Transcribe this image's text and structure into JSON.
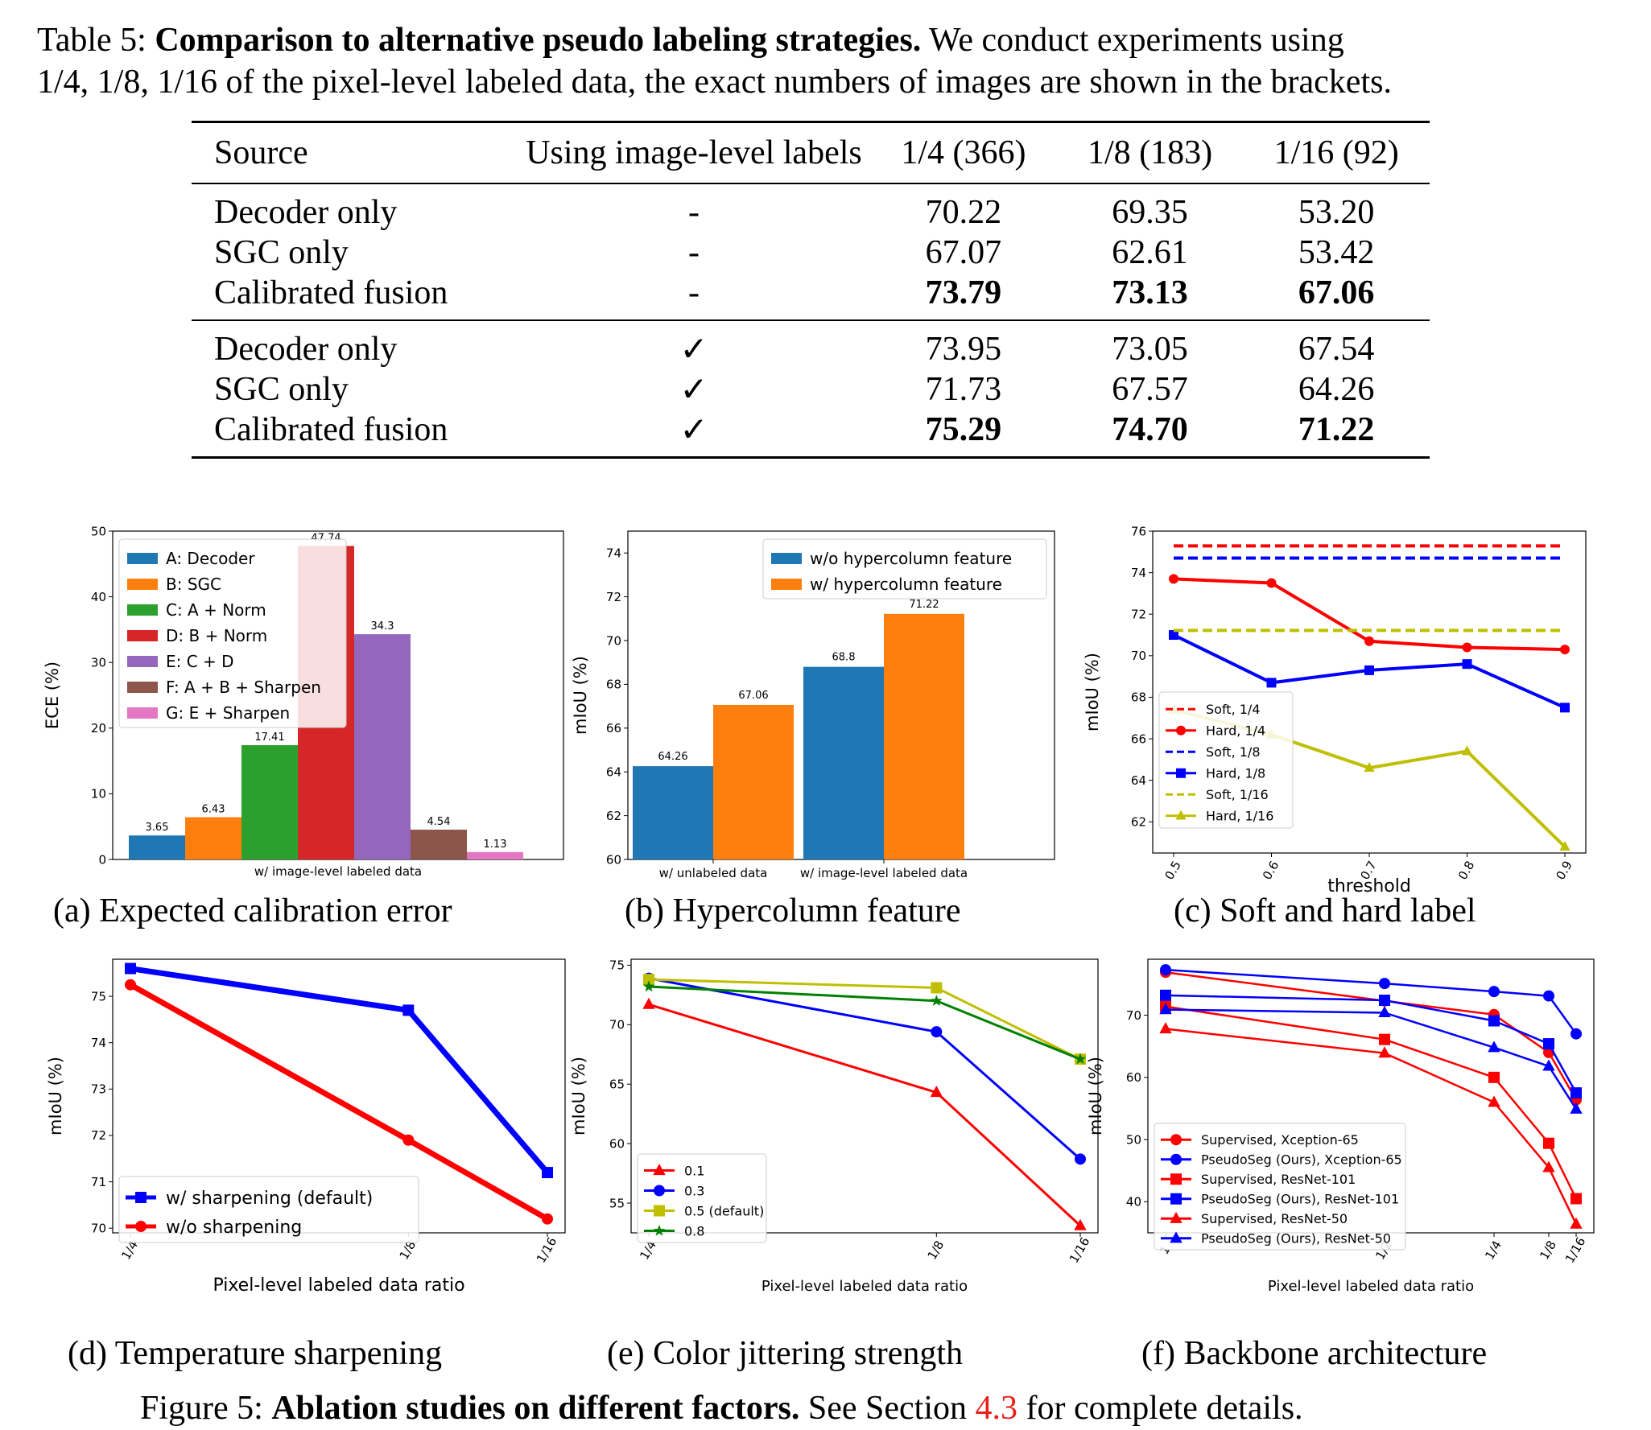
{
  "table_caption": {
    "label": "Table 5:",
    "bold": "Comparison to alternative pseudo labeling strategies.",
    "line1_rest": "We conduct experiments using",
    "line2": "1/4, 1/8, 1/16 of the pixel-level labeled data, the exact numbers of images are shown in the brackets."
  },
  "table": {
    "headers": [
      "Source",
      "Using image-level labels",
      "1/4 (366)",
      "1/8 (183)",
      "1/16 (92)"
    ],
    "groups": [
      [
        {
          "source": "Decoder only",
          "img": "-",
          "values": [
            "70.22",
            "69.35",
            "53.20"
          ],
          "bold": false
        },
        {
          "source": "SGC only",
          "img": "-",
          "values": [
            "67.07",
            "62.61",
            "53.42"
          ],
          "bold": false
        },
        {
          "source": "Calibrated fusion",
          "img": "-",
          "values": [
            "73.79",
            "73.13",
            "67.06"
          ],
          "bold": true
        }
      ],
      [
        {
          "source": "Decoder only",
          "img": "✓",
          "values": [
            "73.95",
            "73.05",
            "67.54"
          ],
          "bold": false
        },
        {
          "source": "SGC only",
          "img": "✓",
          "values": [
            "71.73",
            "67.57",
            "64.26"
          ],
          "bold": false
        },
        {
          "source": "Calibrated fusion",
          "img": "✓",
          "values": [
            "75.29",
            "74.70",
            "71.22"
          ],
          "bold": true
        }
      ]
    ]
  },
  "subcaptions": {
    "a": "(a) Expected calibration error",
    "b": "(b) Hypercolumn feature",
    "c": "(c) Soft and hard label",
    "d": "(d) Temperature sharpening",
    "e": "(e) Color jittering strength",
    "f": "(f) Backbone architecture"
  },
  "figure_caption": {
    "label": "Figure 5:",
    "bold": "Ablation studies on different factors.",
    "pre": "See Section",
    "ref": "4.3",
    "post": "for complete details."
  },
  "chart_data": [
    {
      "id": "a",
      "type": "bar",
      "ylabel": "ECE (%)",
      "xlabel": "w/ image-level labeled data",
      "ylim": [
        0,
        50
      ],
      "yticks": [
        0,
        10,
        20,
        30,
        40,
        50
      ],
      "legend_position": "upper-left",
      "bars": [
        {
          "name": "A: Decoder",
          "value": 3.65,
          "label": "3.65",
          "color": "#1f77b4"
        },
        {
          "name": "B: SGC",
          "value": 6.43,
          "label": "6.43",
          "color": "#ff7f0e"
        },
        {
          "name": "C: A + Norm",
          "value": 17.41,
          "label": "17.41",
          "color": "#2ca02c"
        },
        {
          "name": "D: B + Norm",
          "value": 47.74,
          "label": "47.74",
          "color": "#d62728"
        },
        {
          "name": "E: C + D",
          "value": 34.3,
          "label": "34.3",
          "color": "#9467bd"
        },
        {
          "name": "F: A + B + Sharpen",
          "value": 4.54,
          "label": "4.54",
          "color": "#8c564b"
        },
        {
          "name": "G: E + Sharpen",
          "value": 1.13,
          "label": "1.13",
          "color": "#e377c2"
        }
      ]
    },
    {
      "id": "b",
      "type": "bar",
      "ylabel": "mIoU (%)",
      "ylim": [
        60,
        75
      ],
      "yticks": [
        60,
        62,
        64,
        66,
        68,
        70,
        72,
        74
      ],
      "categories": [
        "w/ unlabeled data",
        "w/ image-level labeled data"
      ],
      "legend_position": "upper-right",
      "series": [
        {
          "name": "w/o hypercolumn feature",
          "color": "#1f77b4",
          "values": [
            64.26,
            68.8
          ],
          "labels": [
            "64.26",
            "68.8"
          ]
        },
        {
          "name": "w/ hypercolumn feature",
          "color": "#ff7f0e",
          "values": [
            67.06,
            71.22
          ],
          "labels": [
            "67.06",
            "71.22"
          ]
        }
      ]
    },
    {
      "id": "c",
      "type": "line",
      "ylabel": "mIoU (%)",
      "xlabel": "threshold",
      "x": [
        0.5,
        0.6,
        0.7,
        0.8,
        0.9
      ],
      "xticks": [
        "0.5",
        "0.6",
        "0.7",
        "0.8",
        "0.9"
      ],
      "ylim": [
        60.5,
        76
      ],
      "yticks": [
        62,
        64,
        66,
        68,
        70,
        72,
        74,
        76
      ],
      "legend_position": "lower-left",
      "series": [
        {
          "name": "Soft, 1/4",
          "color": "#ff0000",
          "dashed": true,
          "marker": "none",
          "values": [
            75.29,
            75.29,
            75.29,
            75.29,
            75.29
          ]
        },
        {
          "name": "Hard, 1/4",
          "color": "#ff0000",
          "dashed": false,
          "marker": "circle",
          "values": [
            73.7,
            73.5,
            70.7,
            70.4,
            70.3
          ]
        },
        {
          "name": "Soft, 1/8",
          "color": "#0000ff",
          "dashed": true,
          "marker": "none",
          "values": [
            74.7,
            74.7,
            74.7,
            74.7,
            74.7
          ]
        },
        {
          "name": "Hard, 1/8",
          "color": "#0000ff",
          "dashed": false,
          "marker": "square",
          "values": [
            71.0,
            68.7,
            69.3,
            69.6,
            67.5
          ]
        },
        {
          "name": "Soft, 1/16",
          "color": "#bfbf00",
          "dashed": true,
          "marker": "none",
          "values": [
            71.22,
            71.22,
            71.22,
            71.22,
            71.22
          ]
        },
        {
          "name": "Hard, 1/16",
          "color": "#bfbf00",
          "dashed": false,
          "marker": "triangle",
          "values": [
            67.4,
            66.2,
            64.6,
            65.4,
            60.8
          ]
        }
      ]
    },
    {
      "id": "d",
      "type": "line",
      "ylabel": "mIoU (%)",
      "xlabel": "Pixel-level labeled data ratio",
      "x": [
        4,
        8,
        16
      ],
      "xscale": "reciprocal",
      "xticks": [
        "1/4",
        "1/8",
        "1/16"
      ],
      "ylim": [
        69.9,
        75.8
      ],
      "yticks": [
        70,
        71,
        72,
        73,
        74,
        75
      ],
      "legend_position": "lower-left",
      "series": [
        {
          "name": "w/ sharpening (default)",
          "color": "#0000ff",
          "marker": "square",
          "values": [
            75.6,
            74.7,
            71.2
          ]
        },
        {
          "name": "w/o sharpening",
          "color": "#ff0000",
          "marker": "circle",
          "values": [
            75.25,
            71.9,
            70.2
          ]
        }
      ]
    },
    {
      "id": "e",
      "type": "line",
      "ylabel": "mIoU (%)",
      "xlabel": "Pixel-level labeled data ratio",
      "x": [
        4,
        8,
        16
      ],
      "xscale": "reciprocal",
      "xticks": [
        "1/4",
        "1/8",
        "1/16"
      ],
      "ylim": [
        52.5,
        75.5
      ],
      "yticks": [
        55,
        60,
        65,
        70,
        75
      ],
      "legend_position": "lower-left",
      "series": [
        {
          "name": "0.1",
          "color": "#ff0000",
          "marker": "triangle",
          "values": [
            71.7,
            64.3,
            53.1
          ]
        },
        {
          "name": "0.3",
          "color": "#0000ff",
          "marker": "circle",
          "values": [
            73.9,
            69.4,
            58.7
          ]
        },
        {
          "name": "0.5 (default)",
          "color": "#bfbf00",
          "marker": "square",
          "values": [
            73.8,
            73.1,
            67.1
          ]
        },
        {
          "name": "0.8",
          "color": "#008000",
          "marker": "star",
          "values": [
            73.2,
            72.0,
            67.1
          ]
        }
      ]
    },
    {
      "id": "f",
      "type": "line",
      "ylabel": "mIoU (%)",
      "xlabel": "Pixel-level labeled data ratio",
      "x": [
        1,
        2,
        4,
        8,
        16
      ],
      "xscale": "reciprocal",
      "xticks": [
        "1",
        "1/2",
        "1/4",
        "1/8",
        "1/16"
      ],
      "ylim": [
        35,
        79
      ],
      "yticks": [
        40,
        50,
        60,
        70
      ],
      "legend_position": "lower-left",
      "series": [
        {
          "name": "Supervised, Xception-65",
          "color": "#ff0000",
          "marker": "circle",
          "values": [
            76.9,
            72.3,
            70.1,
            64.0,
            56.4
          ]
        },
        {
          "name": "PseudoSeg (Ours), Xception-65",
          "color": "#0000ff",
          "marker": "circle",
          "values": [
            77.3,
            75.1,
            73.8,
            73.1,
            67.0
          ]
        },
        {
          "name": "Supervised, ResNet-101",
          "color": "#ff0000",
          "marker": "square",
          "values": [
            71.4,
            66.1,
            60.0,
            49.4,
            40.5
          ]
        },
        {
          "name": "PseudoSeg (Ours), ResNet-101",
          "color": "#0000ff",
          "marker": "square",
          "values": [
            73.2,
            72.4,
            69.1,
            65.4,
            57.5
          ]
        },
        {
          "name": "Supervised, ResNet-50",
          "color": "#ff0000",
          "marker": "triangle",
          "values": [
            67.8,
            63.9,
            56.0,
            45.5,
            36.4
          ]
        },
        {
          "name": "PseudoSeg (Ours), ResNet-50",
          "color": "#0000ff",
          "marker": "triangle",
          "values": [
            70.9,
            70.4,
            64.8,
            61.8,
            54.9
          ]
        }
      ]
    }
  ]
}
